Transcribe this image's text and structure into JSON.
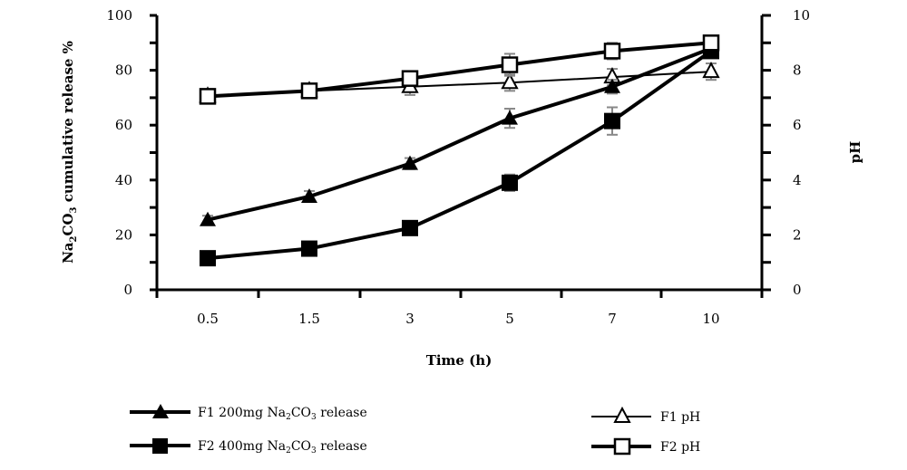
{
  "chart_data": {
    "type": "line",
    "x_categories": [
      "0.5",
      "1.5",
      "3",
      "5",
      "7",
      "10"
    ],
    "xlabel": "Time (h)",
    "ylabel_left": "Na2CO3 cumulative release %",
    "ylabel_left_parts": {
      "pre": "Na",
      "sub1": "2",
      "mid": "CO",
      "sub2": "3",
      "post": " cumulative release %"
    },
    "ylabel_right": "pH",
    "ylim_left": [
      0,
      100
    ],
    "yticks_left": [
      "0",
      "20",
      "40",
      "60",
      "80",
      "100"
    ],
    "ylim_right": [
      0,
      10
    ],
    "yticks_right": [
      "0",
      "2",
      "4",
      "6",
      "8",
      "10"
    ],
    "grid": false,
    "legend_placement": "bottom",
    "series": [
      {
        "name": "F1 200mg Na2CO3 release",
        "name_parts": {
          "pre": "F1 200mg Na",
          "sub1": "2",
          "mid": "CO",
          "sub2": "3",
          "post": " release"
        },
        "axis": "left",
        "marker": "filled-triangle",
        "line_width": 4,
        "values": [
          25.5,
          34,
          46,
          62.5,
          74,
          88
        ],
        "errors": [
          1.5,
          2,
          2,
          3.5,
          2.5,
          2
        ]
      },
      {
        "name": "F2 400mg Na2CO3 release",
        "name_parts": {
          "pre": "F2 400mg Na",
          "sub1": "2",
          "mid": "CO",
          "sub2": "3",
          "post": " release"
        },
        "axis": "left",
        "marker": "filled-square",
        "line_width": 4,
        "values": [
          11.5,
          15,
          22.5,
          39,
          61.5,
          87
        ],
        "errors": [
          1,
          1,
          1.5,
          3,
          5,
          2
        ]
      },
      {
        "name": "F1 pH",
        "axis": "right",
        "marker": "open-triangle",
        "line_width": 2,
        "values": [
          7.05,
          7.25,
          7.4,
          7.55,
          7.75,
          7.95
        ],
        "errors": [
          0.2,
          0.2,
          0.3,
          0.3,
          0.3,
          0.3
        ]
      },
      {
        "name": "F2 pH",
        "axis": "right",
        "marker": "open-square",
        "line_width": 4,
        "values": [
          7.05,
          7.25,
          7.7,
          8.2,
          8.7,
          9.0
        ],
        "errors": [
          0.2,
          0.2,
          0.2,
          0.4,
          0.3,
          0.2
        ]
      }
    ]
  }
}
